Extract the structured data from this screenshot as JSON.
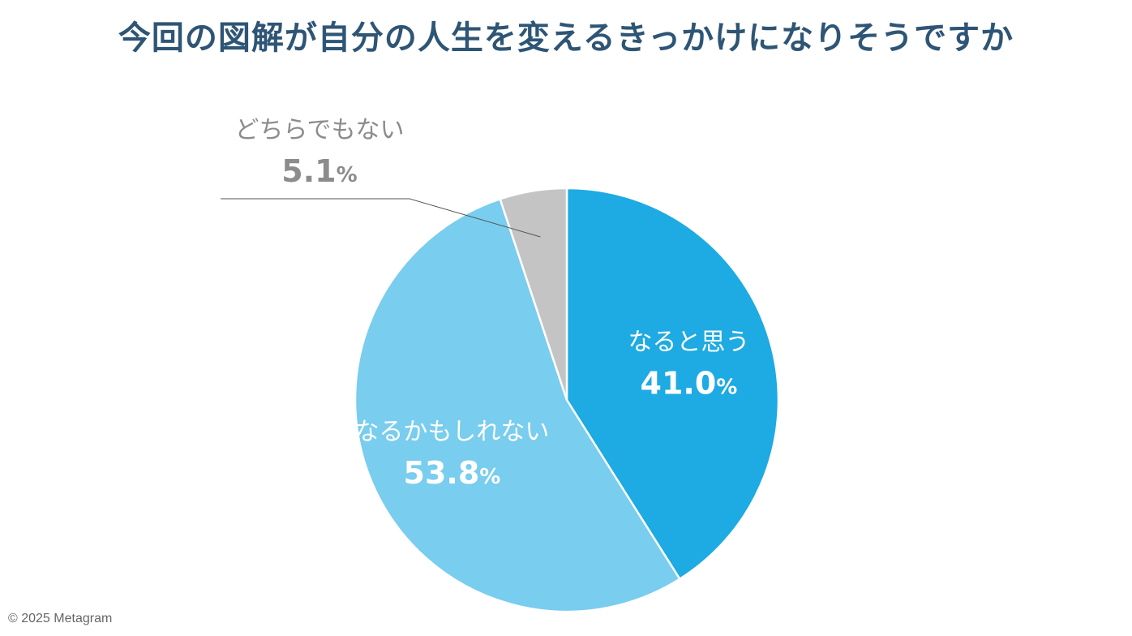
{
  "title": "今回の図解が自分の人生を変えるきっかけになりそうですか",
  "copyright": "© 2025 Metagram",
  "colors": {
    "title": "#2e5575",
    "outside_label": "#8c8c8c",
    "leader_line": "#555555"
  },
  "chart_data": {
    "type": "pie",
    "title": "今回の図解が自分の人生を変えるきっかけになりそうですか",
    "slices": [
      {
        "label": "なると思う",
        "value": 41.0,
        "display": "41.0",
        "unit": "%",
        "color": "#1eaae2",
        "label_color": "#ffffff",
        "label_placement": "inside"
      },
      {
        "label": "なるかもしれない",
        "value": 53.8,
        "display": "53.8",
        "unit": "%",
        "color": "#79cdee",
        "label_color": "#ffffff",
        "label_placement": "inside"
      },
      {
        "label": "どちらでもない",
        "value": 5.1,
        "display": "5.1",
        "unit": "%",
        "color": "#c4c4c4",
        "label_color": "#8c8c8c",
        "label_placement": "outside"
      }
    ],
    "start_angle": "12 o'clock",
    "direction": "clockwise"
  }
}
